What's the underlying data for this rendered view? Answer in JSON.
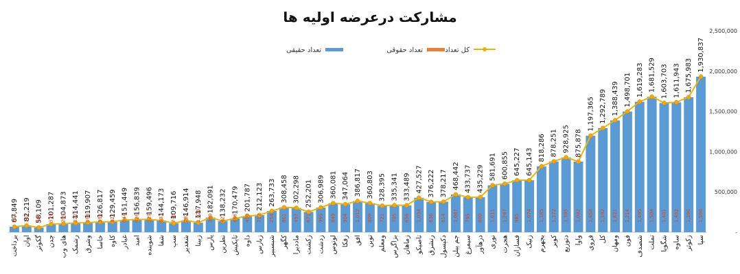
{
  "chart_data": {
    "type": "bar",
    "title": "مشارکت درعرضه اولیه ها",
    "legend": {
      "placement": "top",
      "entries": [
        "تعداد حقیقی",
        "تعداد حقوقی",
        "کل تعداد"
      ]
    },
    "colors": {
      "bar": "#5b9bd5",
      "legal": "#ed7d31",
      "line": "#f0b400",
      "marker_fill": "#f6a800",
      "grid": "#e6e6e6"
    },
    "ylim": [
      0,
      2500000
    ],
    "yticks": [
      "-",
      "500,000",
      "1,000,000",
      "1,500,000",
      "2,000,000",
      "2,500,000"
    ],
    "grid": false,
    "categories": [
      "برداخت",
      "اوان",
      "گکوثر",
      "چدن",
      "های وب",
      "رشمک",
      "وشرق",
      "خاسا",
      "کاوه",
      "غبادر",
      "امید",
      "شوینده",
      "شفا",
      "سپ",
      "شغدیر",
      "زبینا",
      "پارس",
      "نطرین",
      "تاپکیش",
      "داوه",
      "زبارس",
      "شبسبیر",
      "کگهر",
      "ماددیرا",
      "زکشت",
      "زدشت",
      "لوتوس",
      "زفکا",
      "افق",
      "توین",
      "ومعلم",
      "بزاگرس",
      "زماهان",
      "تاصیکو",
      "رتشرق",
      "دکپسول",
      "جم پیلن",
      "سیمرغ",
      "درهآور",
      "نوری",
      "هجرت",
      "فسازان",
      "زنیک",
      "بجهرم",
      "کوبر",
      "دتوزیع",
      "واوا",
      "فروی",
      "کل",
      "ومهان",
      "فون",
      "شصدف",
      "تملت",
      "شگویا",
      "ساوه",
      "زکوثر",
      "سپا"
    ],
    "series": [
      {
        "name": "تعداد حقیقی",
        "values": [
          "67,849",
          "82,219",
          "58,109",
          "101,287",
          "104,873",
          "114,441",
          "119,907",
          "126,817",
          "129,459",
          "151,449",
          "156,839",
          "159,496",
          "144,173",
          "109,716",
          "146,914",
          "117,948",
          "182,091",
          "138,232",
          "170,479",
          "201,787",
          "212,123",
          "263,733",
          "308,458",
          "302,298",
          "252,201",
          "306,989",
          "360,081",
          "347,064",
          "386,817",
          "360,803",
          "328,395",
          "335,341",
          "333,489",
          "427,527",
          "376,222",
          "378,217",
          "468,442",
          "433,737",
          "435,229",
          "581,691",
          "600,855",
          "645,227",
          "645,143",
          "818,286",
          "878,251",
          "928,925",
          "875,878",
          "1,197,365",
          "1,292,789",
          "1,388,439",
          "1,498,701",
          "1,619,283",
          "1,681,529",
          "1,603,703",
          "1,611,943",
          "1,675,983",
          "1,930,837"
        ]
      },
      {
        "name": "تعداد حقوقی",
        "values": [
          "254",
          "101",
          "487",
          "379",
          "269",
          "322",
          "398",
          "393",
          "822",
          "844",
          "426",
          "329",
          "633",
          "746",
          "292",
          "1,028",
          "360",
          "421",
          "466",
          "400",
          "717",
          "254",
          "861",
          "457",
          "671",
          "995",
          "849",
          "904",
          "1,012",
          "809",
          "721",
          "705",
          "656",
          "1,034",
          "636",
          "614",
          "1,067",
          "795",
          "800",
          "1,611",
          "1,267",
          "985",
          "1,074",
          "1,185",
          "1,372",
          "1,305",
          "1,082",
          "1,458",
          "1,192",
          "1,821",
          "1,214",
          "1,495",
          "1,504",
          "1,401",
          "1,452",
          "1,396",
          "1,596"
        ]
      },
      {
        "name": "کل تعداد",
        "values": [
          68103,
          82320,
          58596,
          101666,
          105142,
          114763,
          120305,
          127210,
          130281,
          152293,
          157265,
          159825,
          144806,
          110462,
          147206,
          118976,
          182451,
          138653,
          170945,
          202187,
          212840,
          263987,
          309319,
          302755,
          252872,
          307984,
          360930,
          347968,
          387829,
          361612,
          329116,
          336046,
          334145,
          428561,
          376858,
          378831,
          469509,
          434532,
          436029,
          583302,
          602122,
          646212,
          646217,
          819471,
          879623,
          930230,
          876960,
          1198823,
          1293981,
          1390260,
          1499915,
          1620778,
          1683033,
          1605104,
          1613395,
          1677379,
          1932433
        ]
      }
    ]
  }
}
